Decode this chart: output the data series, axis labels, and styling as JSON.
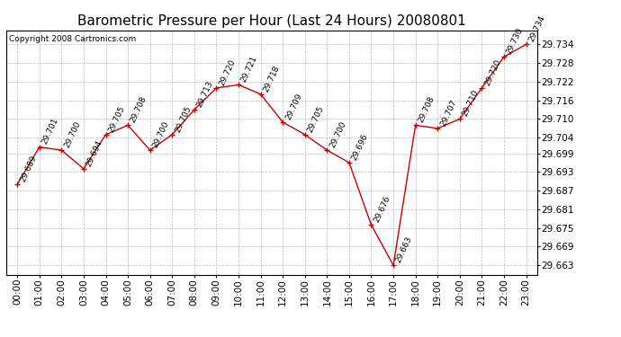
{
  "title": "Barometric Pressure per Hour (Last 24 Hours) 20080801",
  "copyright": "Copyright 2008 Cartronics.com",
  "hours": [
    "00:00",
    "01:00",
    "02:00",
    "03:00",
    "04:00",
    "05:00",
    "06:00",
    "07:00",
    "08:00",
    "09:00",
    "10:00",
    "11:00",
    "12:00",
    "13:00",
    "14:00",
    "15:00",
    "16:00",
    "17:00",
    "18:00",
    "19:00",
    "20:00",
    "21:00",
    "22:00",
    "23:00"
  ],
  "values": [
    29.689,
    29.701,
    29.7,
    29.694,
    29.705,
    29.708,
    29.7,
    29.705,
    29.713,
    29.72,
    29.721,
    29.718,
    29.709,
    29.705,
    29.7,
    29.696,
    29.676,
    29.663,
    29.708,
    29.707,
    29.71,
    29.72,
    29.73,
    29.734
  ],
  "line_color": "#cc0000",
  "marker_color": "#cc0000",
  "bg_color": "#ffffff",
  "grid_color": "#bbbbbb",
  "title_fontsize": 11,
  "label_fontsize": 6.5,
  "ytick_fontsize": 7.5,
  "xtick_fontsize": 7.5,
  "yticks": [
    29.663,
    29.669,
    29.675,
    29.681,
    29.687,
    29.693,
    29.699,
    29.704,
    29.71,
    29.716,
    29.722,
    29.728,
    29.734
  ],
  "ymin": 29.66,
  "ymax": 29.7385
}
